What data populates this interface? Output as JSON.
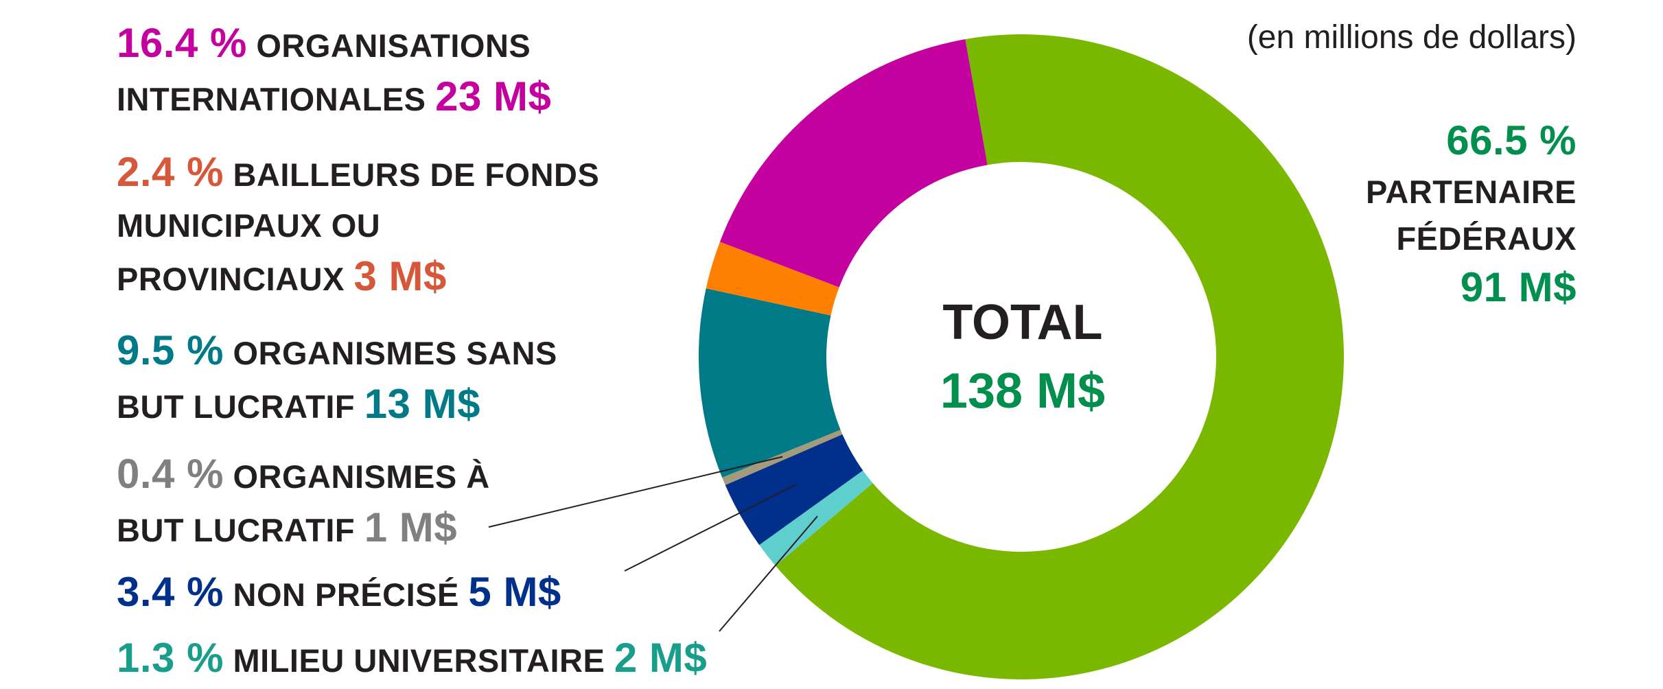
{
  "unit_note": "(en millions de dollars)",
  "center": {
    "total_label": "TOTAL",
    "total_value": "138 M$"
  },
  "chart_data": {
    "type": "pie",
    "subtype": "donut",
    "total": 138,
    "unit": "M$",
    "slices": [
      {
        "key": "federal",
        "pct_label": "66.5 %",
        "name_lines": [
          "PARTENAIRE",
          "FÉDÉRAUX"
        ],
        "value": 91,
        "value_label": "91 M$",
        "percent": 66.5,
        "slice_color": "#7ab800",
        "text_color": "#008f4c"
      },
      {
        "key": "university",
        "pct_label": "1.3 %",
        "name_lines": [
          "MILIEU UNIVERSITAIRE"
        ],
        "value": 2,
        "value_label": "2 M$",
        "percent": 1.3,
        "slice_color": "#5fcfce",
        "text_color": "#1a9e8c"
      },
      {
        "key": "unspecified",
        "pct_label": "3.4 %",
        "name_lines": [
          "NON PRÉCISÉ"
        ],
        "value": 5,
        "value_label": "5 M$",
        "percent": 3.4,
        "slice_color": "#002f8c",
        "text_color": "#002f8c"
      },
      {
        "key": "forprofit",
        "pct_label": "0.4 %",
        "name_lines": [
          "ORGANISMES À",
          "BUT LUCRATIF"
        ],
        "value": 1,
        "value_label": "1 M$",
        "percent": 0.4,
        "slice_color": "#a49b7c",
        "text_color": "#808080"
      },
      {
        "key": "nonprofit",
        "pct_label": "9.5 %",
        "name_lines": [
          "ORGANISMES SANS",
          "BUT LUCRATIF"
        ],
        "value": 13,
        "value_label": "13 M$",
        "percent": 9.5,
        "slice_color": "#007a87",
        "text_color": "#007a87"
      },
      {
        "key": "municipal",
        "pct_label": "2.4 %",
        "name_lines": [
          "BAILLEURS DE FONDS",
          "MUNICIPAUX OU",
          "PROVINCIAUX"
        ],
        "value": 3,
        "value_label": "3 M$",
        "percent": 2.4,
        "slice_color": "#ff8000",
        "text_color": "#d6573a"
      },
      {
        "key": "international",
        "pct_label": "16.4 %",
        "name_lines": [
          "ORGANISATIONS",
          "INTERNATIONALES"
        ],
        "value": 23,
        "value_label": "23 M$",
        "percent": 16.4,
        "slice_color": "#c4009f",
        "text_color": "#c4009f"
      }
    ]
  }
}
